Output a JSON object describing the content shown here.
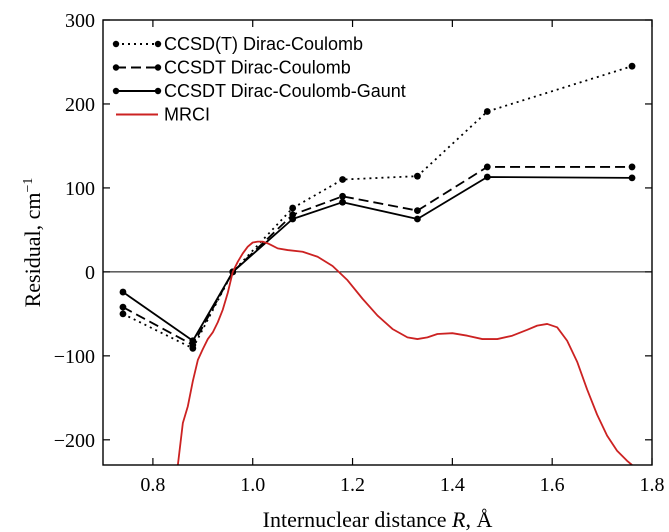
{
  "chart_data": {
    "type": "line",
    "xlabel": "Internuclear distance R, Å",
    "xlabel_parts": {
      "pre": "Internuclear distance ",
      "var": "R",
      "post": ", Å"
    },
    "ylabel": "Residual, cm⁻¹",
    "ylabel_parts": {
      "main": "Residual, cm",
      "sup": "−1"
    },
    "xlim": [
      0.7,
      1.8
    ],
    "ylim": [
      -230,
      300
    ],
    "xticks": [
      {
        "value": 0.8,
        "label": "0.8"
      },
      {
        "value": 1.0,
        "label": "1.0"
      },
      {
        "value": 1.2,
        "label": "1.2"
      },
      {
        "value": 1.4,
        "label": "1.4"
      },
      {
        "value": 1.6,
        "label": "1.6"
      },
      {
        "value": 1.8,
        "label": "1.8"
      }
    ],
    "yticks": [
      {
        "value": -200,
        "label": "−200"
      },
      {
        "value": -100,
        "label": "−100"
      },
      {
        "value": 0,
        "label": "0"
      },
      {
        "value": 100,
        "label": "100"
      },
      {
        "value": 200,
        "label": "200"
      },
      {
        "value": 300,
        "label": "300"
      }
    ],
    "grid": false,
    "zero_line": true,
    "legend_position": "top-left",
    "series": [
      {
        "name": "CCSD(T) Dirac-Coulomb",
        "style": "dotted",
        "color": "#000000",
        "markers": true,
        "x": [
          0.74,
          0.88,
          0.96,
          1.08,
          1.18,
          1.33,
          1.47,
          1.76
        ],
        "y": [
          -50,
          -91,
          0,
          76,
          110,
          114,
          191,
          245
        ]
      },
      {
        "name": "CCSDT Dirac-Coulomb",
        "style": "dashed",
        "color": "#000000",
        "markers": true,
        "x": [
          0.74,
          0.88,
          0.96,
          1.08,
          1.18,
          1.33,
          1.47,
          1.76
        ],
        "y": [
          -42,
          -87,
          0,
          68,
          90,
          73,
          125,
          125
        ]
      },
      {
        "name": "CCSDT Dirac-Coulomb-Gaunt",
        "style": "solid",
        "color": "#000000",
        "markers": true,
        "x": [
          0.74,
          0.88,
          0.96,
          1.08,
          1.18,
          1.33,
          1.47,
          1.76
        ],
        "y": [
          -24,
          -82,
          0,
          63,
          83,
          63,
          113,
          112
        ]
      },
      {
        "name": "MRCI",
        "style": "solid",
        "color": "#cc2222",
        "markers": false,
        "x": [
          0.85,
          0.86,
          0.87,
          0.88,
          0.89,
          0.9,
          0.91,
          0.92,
          0.93,
          0.94,
          0.95,
          0.96,
          0.97,
          0.98,
          0.99,
          1.0,
          1.01,
          1.02,
          1.03,
          1.04,
          1.05,
          1.07,
          1.1,
          1.13,
          1.16,
          1.19,
          1.22,
          1.25,
          1.28,
          1.31,
          1.33,
          1.35,
          1.37,
          1.4,
          1.43,
          1.46,
          1.49,
          1.52,
          1.55,
          1.57,
          1.59,
          1.61,
          1.63,
          1.65,
          1.67,
          1.69,
          1.71,
          1.73,
          1.75,
          1.76
        ],
        "y": [
          -230,
          -180,
          -160,
          -130,
          -105,
          -92,
          -80,
          -72,
          -60,
          -45,
          -25,
          0,
          12,
          22,
          30,
          35,
          36,
          36,
          34,
          31,
          28,
          26,
          24,
          18,
          7,
          -10,
          -32,
          -52,
          -68,
          -78,
          -80,
          -78,
          -74,
          -73,
          -76,
          -80,
          -80,
          -76,
          -69,
          -64,
          -62,
          -66,
          -82,
          -107,
          -140,
          -170,
          -195,
          -213,
          -225,
          -230
        ]
      }
    ]
  }
}
